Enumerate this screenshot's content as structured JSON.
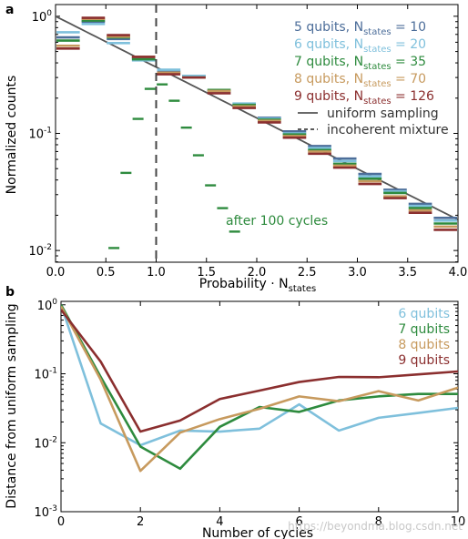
{
  "chart_data": [
    {
      "type": "line",
      "panel": "a",
      "xlabel_main": "Probability · N",
      "xlabel_sub": "states",
      "ylabel": "Normalized counts",
      "xlim": [
        0.0,
        4.0
      ],
      "ylim_log10": [
        -2.1,
        0.1
      ],
      "xticks": [
        {
          "v": 0.0,
          "label": "0.0"
        },
        {
          "v": 0.5,
          "label": "0.5"
        },
        {
          "v": 1.0,
          "label": "1.0"
        },
        {
          "v": 1.5,
          "label": "1.5"
        },
        {
          "v": 2.0,
          "label": "2.0"
        },
        {
          "v": 2.5,
          "label": "2.5"
        },
        {
          "v": 3.0,
          "label": "3.0"
        },
        {
          "v": 3.5,
          "label": "3.5"
        },
        {
          "v": 4.0,
          "label": "4.0"
        }
      ],
      "yticks": [
        {
          "exp": 0,
          "mantissa": "10",
          "sup": "0"
        },
        {
          "exp": -1,
          "mantissa": "10",
          "sup": "-1"
        },
        {
          "exp": -2,
          "mantissa": "10",
          "sup": "-2"
        }
      ],
      "bin_width": 0.25,
      "bin_centers": [
        0.125,
        0.375,
        0.625,
        0.875,
        1.125,
        1.375,
        1.625,
        1.875,
        2.125,
        2.375,
        2.625,
        2.875,
        3.125,
        3.375,
        3.625,
        3.875
      ],
      "series": [
        {
          "name": "5 qubits, N",
          "sub": "states",
          "suffix": " = 10",
          "color": "#4d6e9a",
          "values": [
            0.66,
            0.9,
            0.64,
            0.44,
            0.34,
            0.31,
            0.23,
            0.175,
            0.136,
            0.104,
            0.078,
            0.061,
            0.045,
            0.033,
            0.025,
            0.019
          ]
        },
        {
          "name": "6 qubits, N",
          "sub": "states",
          "suffix": " = 20",
          "color": "#7fc0dc",
          "values": [
            0.73,
            0.86,
            0.59,
            0.42,
            0.35,
            0.31,
            0.23,
            0.18,
            0.134,
            0.1,
            0.075,
            0.058,
            0.043,
            0.032,
            0.024,
            0.018
          ]
        },
        {
          "name": "7 qubits, N",
          "sub": "states",
          "suffix": " = 35",
          "color": "#2e8b3e",
          "values": [
            0.62,
            0.92,
            0.66,
            0.43,
            0.33,
            0.3,
            0.235,
            0.175,
            0.131,
            0.098,
            0.072,
            0.055,
            0.041,
            0.031,
            0.023,
            0.017
          ]
        },
        {
          "name": "8 qubits, N",
          "sub": "states",
          "suffix": " = 70",
          "color": "#c79a5e",
          "values": [
            0.56,
            0.95,
            0.67,
            0.45,
            0.33,
            0.3,
            0.23,
            0.17,
            0.128,
            0.095,
            0.07,
            0.053,
            0.039,
            0.029,
            0.022,
            0.016
          ]
        },
        {
          "name": "9 qubits, N",
          "sub": "states",
          "suffix": " = 126",
          "color": "#8b2f2f",
          "values": [
            0.53,
            0.97,
            0.69,
            0.45,
            0.32,
            0.3,
            0.22,
            0.165,
            0.124,
            0.092,
            0.067,
            0.051,
            0.037,
            0.028,
            0.021,
            0.015
          ]
        }
      ],
      "uniform_sampling": {
        "name": "uniform sampling",
        "color": "#555555",
        "formula": "exp(-x)"
      },
      "incoherent_mixture": {
        "name": "incoherent mixture",
        "color": "#444444",
        "x": 1.0
      },
      "after_cycles": {
        "label": "after 100 cycles",
        "color": "#2e8b3e",
        "points": [
          {
            "x": 0.58,
            "y": 0.0105
          },
          {
            "x": 0.7,
            "y": 0.046
          },
          {
            "x": 0.82,
            "y": 0.133
          },
          {
            "x": 0.94,
            "y": 0.24
          },
          {
            "x": 1.06,
            "y": 0.262
          },
          {
            "x": 1.18,
            "y": 0.19
          },
          {
            "x": 1.3,
            "y": 0.112
          },
          {
            "x": 1.42,
            "y": 0.065
          },
          {
            "x": 1.54,
            "y": 0.036
          },
          {
            "x": 1.66,
            "y": 0.023
          },
          {
            "x": 1.78,
            "y": 0.0145
          }
        ]
      }
    },
    {
      "type": "line",
      "panel": "b",
      "xlabel": "Number of cycles",
      "ylabel": "Distance from uniform sampling",
      "xlim": [
        0,
        10
      ],
      "ylim_log10": [
        -3,
        0.05
      ],
      "xticks": [
        {
          "v": 0,
          "label": "0"
        },
        {
          "v": 2,
          "label": "2"
        },
        {
          "v": 4,
          "label": "4"
        },
        {
          "v": 6,
          "label": "6"
        },
        {
          "v": 8,
          "label": "8"
        },
        {
          "v": 10,
          "label": "10"
        }
      ],
      "yticks": [
        {
          "exp": 0,
          "mantissa": "10",
          "sup": "0"
        },
        {
          "exp": -1,
          "mantissa": "10",
          "sup": "-1"
        },
        {
          "exp": -2,
          "mantissa": "10",
          "sup": "-2"
        },
        {
          "exp": -3,
          "mantissa": "10",
          "sup": "-3"
        }
      ],
      "x": [
        0,
        1,
        2,
        3,
        4,
        5,
        6,
        7,
        8,
        9,
        10
      ],
      "series": [
        {
          "name": "6 qubits",
          "color": "#7fc0dc",
          "values": [
            1.0,
            0.019,
            0.0092,
            0.015,
            0.0145,
            0.016,
            0.036,
            0.015,
            0.023,
            0.027,
            0.032
          ]
        },
        {
          "name": "7 qubits",
          "color": "#2e8b3e",
          "values": [
            1.0,
            0.09,
            0.0088,
            0.0042,
            0.017,
            0.033,
            0.028,
            0.041,
            0.047,
            0.051,
            0.051
          ]
        },
        {
          "name": "8 qubits",
          "color": "#c79a5e",
          "values": [
            0.95,
            0.082,
            0.0039,
            0.014,
            0.022,
            0.031,
            0.047,
            0.04,
            0.056,
            0.041,
            0.063
          ]
        },
        {
          "name": "9 qubits",
          "color": "#8b2f2f",
          "values": [
            0.85,
            0.15,
            0.0145,
            0.021,
            0.043,
            0.057,
            0.076,
            0.09,
            0.089,
            0.098,
            0.108
          ]
        }
      ]
    }
  ],
  "watermark": "https://beyondma.blog.csdn.net"
}
